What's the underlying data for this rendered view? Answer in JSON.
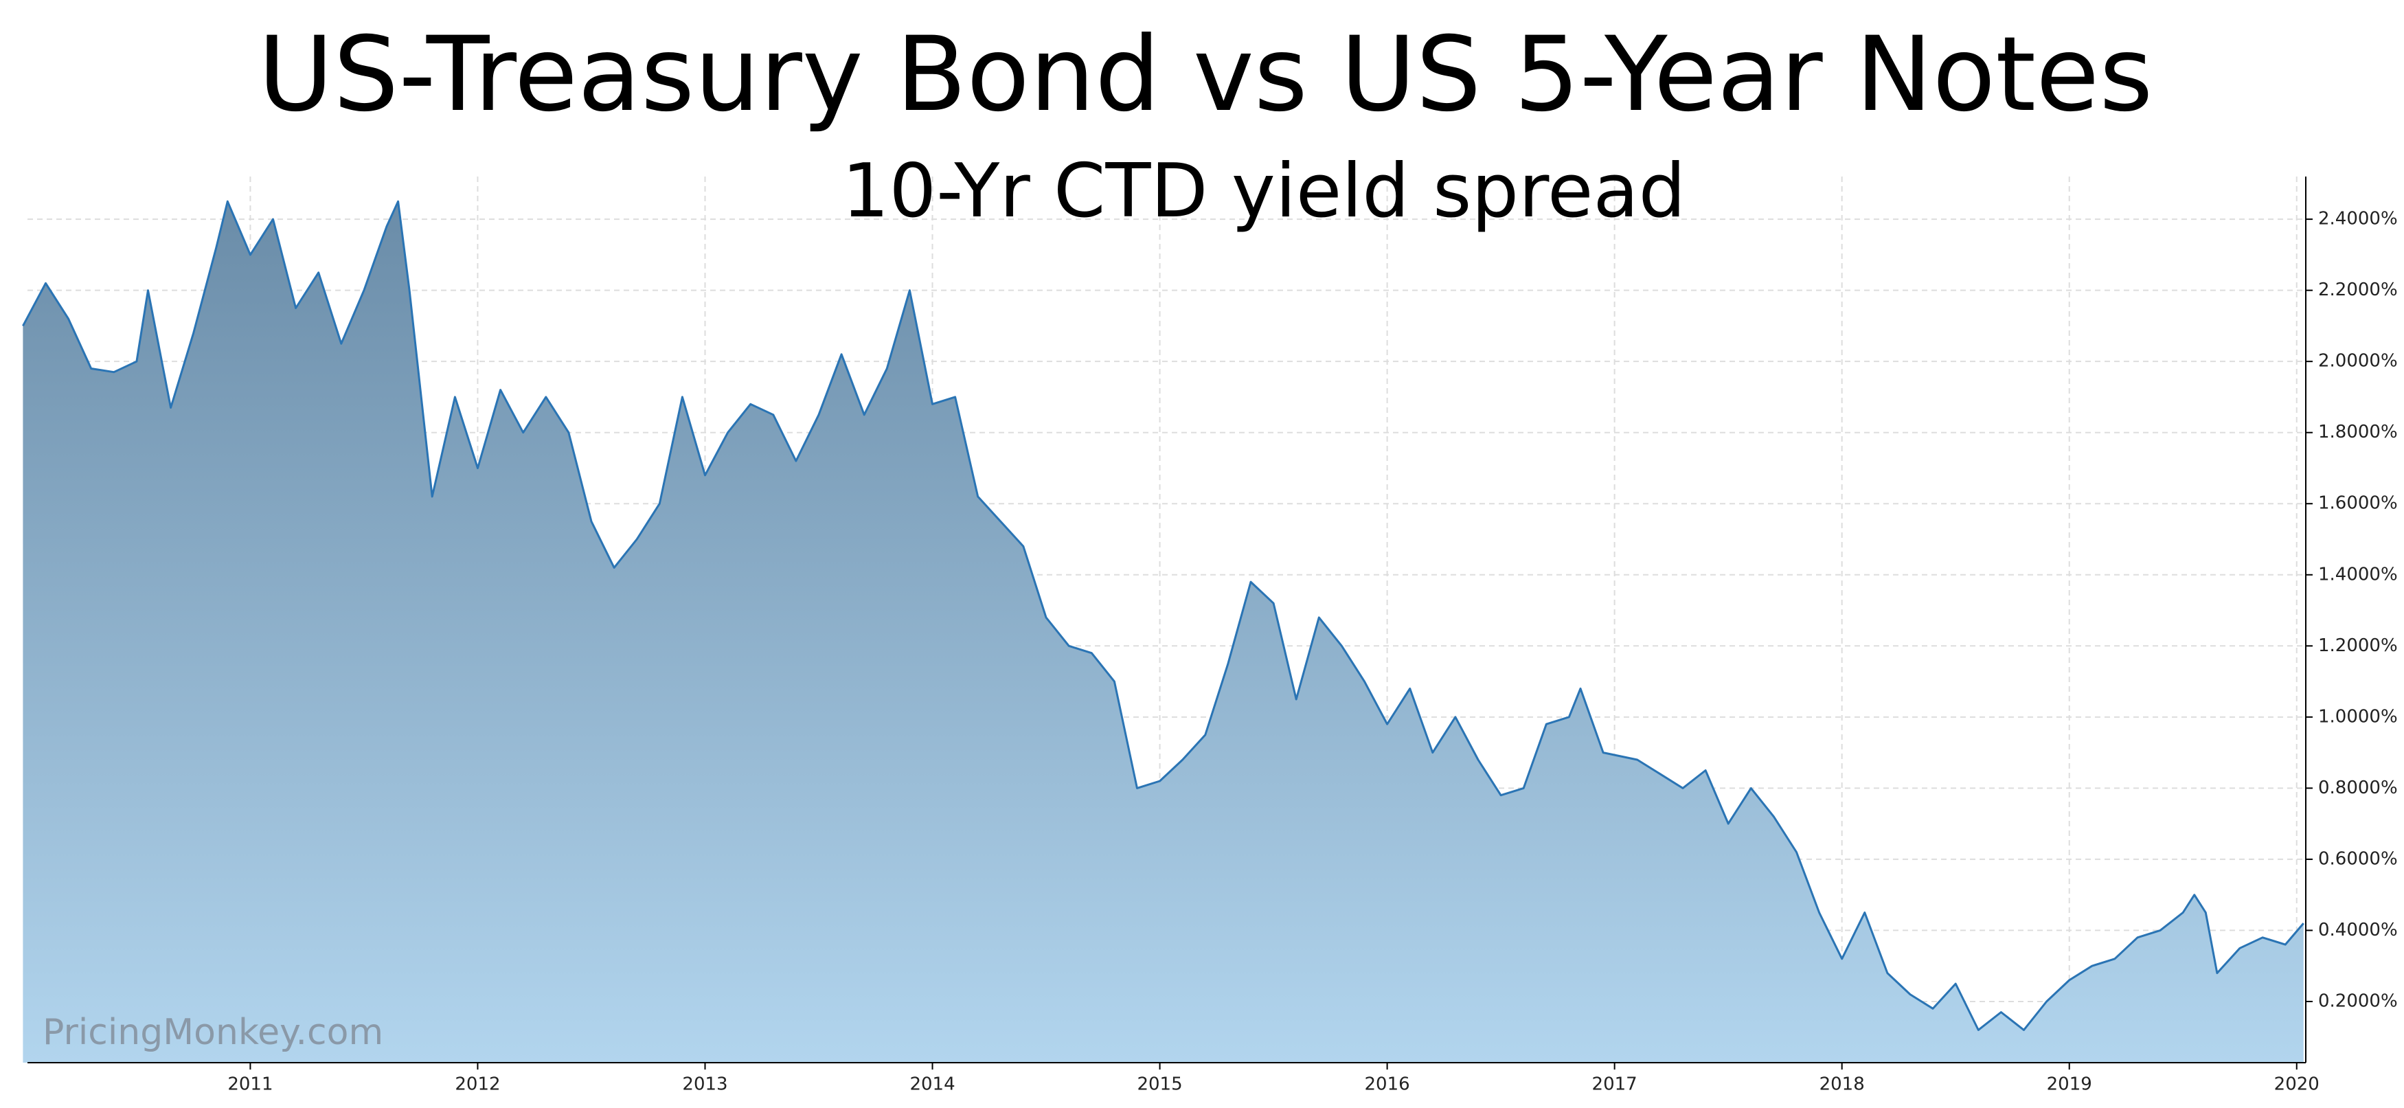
{
  "chart_data": {
    "type": "area",
    "title": "US-Treasury Bond vs US 5-Year Notes",
    "subtitle": "10-Yr CTD yield spread",
    "watermark": "PricingMonkey.com",
    "x": [
      2010.0,
      2010.1,
      2010.2,
      2010.3,
      2010.4,
      2010.5,
      2010.55,
      2010.65,
      2010.75,
      2010.85,
      2010.9,
      2011.0,
      2011.1,
      2011.2,
      2011.3,
      2011.4,
      2011.5,
      2011.6,
      2011.65,
      2011.7,
      2011.8,
      2011.9,
      2012.0,
      2012.1,
      2012.2,
      2012.3,
      2012.4,
      2012.5,
      2012.6,
      2012.7,
      2012.8,
      2012.9,
      2013.0,
      2013.1,
      2013.2,
      2013.3,
      2013.4,
      2013.5,
      2013.6,
      2013.7,
      2013.8,
      2013.9,
      2014.0,
      2014.1,
      2014.2,
      2014.3,
      2014.4,
      2014.5,
      2014.6,
      2014.7,
      2014.8,
      2014.9,
      2015.0,
      2015.1,
      2015.2,
      2015.3,
      2015.4,
      2015.5,
      2015.6,
      2015.7,
      2015.8,
      2015.9,
      2016.0,
      2016.1,
      2016.2,
      2016.3,
      2016.4,
      2016.5,
      2016.6,
      2016.7,
      2016.8,
      2016.85,
      2016.95,
      2017.1,
      2017.2,
      2017.3,
      2017.4,
      2017.5,
      2017.6,
      2017.7,
      2017.8,
      2017.9,
      2018.0,
      2018.1,
      2018.2,
      2018.3,
      2018.4,
      2018.5,
      2018.6,
      2018.7,
      2018.8,
      2018.9,
      2019.0,
      2019.1,
      2019.2,
      2019.3,
      2019.4,
      2019.5,
      2019.55,
      2019.6,
      2019.65,
      2019.75,
      2019.85,
      2019.95,
      2020.03
    ],
    "series": [
      {
        "color": "#2a74b4",
        "values": [
          2.1,
          2.22,
          2.12,
          1.98,
          1.97,
          2.0,
          2.2,
          1.87,
          2.08,
          2.32,
          2.45,
          2.3,
          2.4,
          2.15,
          2.25,
          2.05,
          2.2,
          2.38,
          2.45,
          2.2,
          1.62,
          1.9,
          1.7,
          1.92,
          1.8,
          1.9,
          1.8,
          1.55,
          1.42,
          1.5,
          1.6,
          1.9,
          1.68,
          1.8,
          1.88,
          1.85,
          1.72,
          1.85,
          2.02,
          1.85,
          1.98,
          2.2,
          1.88,
          1.9,
          1.62,
          1.55,
          1.48,
          1.28,
          1.2,
          1.18,
          1.1,
          0.8,
          0.82,
          0.88,
          0.95,
          1.15,
          1.38,
          1.32,
          1.05,
          1.28,
          1.2,
          1.1,
          0.98,
          1.08,
          0.9,
          1.0,
          0.88,
          0.78,
          0.8,
          0.98,
          1.0,
          1.08,
          0.9,
          0.88,
          0.84,
          0.8,
          0.85,
          0.7,
          0.8,
          0.72,
          0.62,
          0.45,
          0.32,
          0.45,
          0.28,
          0.22,
          0.18,
          0.25,
          0.12,
          0.17,
          0.12,
          0.2,
          0.26,
          0.3,
          0.32,
          0.38,
          0.4,
          0.45,
          0.5,
          0.45,
          0.28,
          0.35,
          0.38,
          0.36,
          0.42
        ]
      }
    ],
    "xlim": [
      2010.02,
      2020.04
    ],
    "xticks": [
      2011,
      2012,
      2013,
      2014,
      2015,
      2016,
      2017,
      2018,
      2019,
      2020
    ],
    "ylim": [
      0.028,
      2.52
    ],
    "yticks": [
      {
        "value": 0.2,
        "label": "0.2000%"
      },
      {
        "value": 0.4,
        "label": "0.4000%"
      },
      {
        "value": 0.6,
        "label": "0.6000%"
      },
      {
        "value": 0.8,
        "label": "0.8000%"
      },
      {
        "value": 1.0,
        "label": "1.0000%"
      },
      {
        "value": 1.2,
        "label": "1.2000%"
      },
      {
        "value": 1.4,
        "label": "1.4000%"
      },
      {
        "value": 1.6,
        "label": "1.6000%"
      },
      {
        "value": 1.8,
        "label": "1.8000%"
      },
      {
        "value": 2.0,
        "label": "2.0000%"
      },
      {
        "value": 2.2,
        "label": "2.2000%"
      },
      {
        "value": 2.4,
        "label": "2.4000%"
      }
    ],
    "grid": true
  }
}
